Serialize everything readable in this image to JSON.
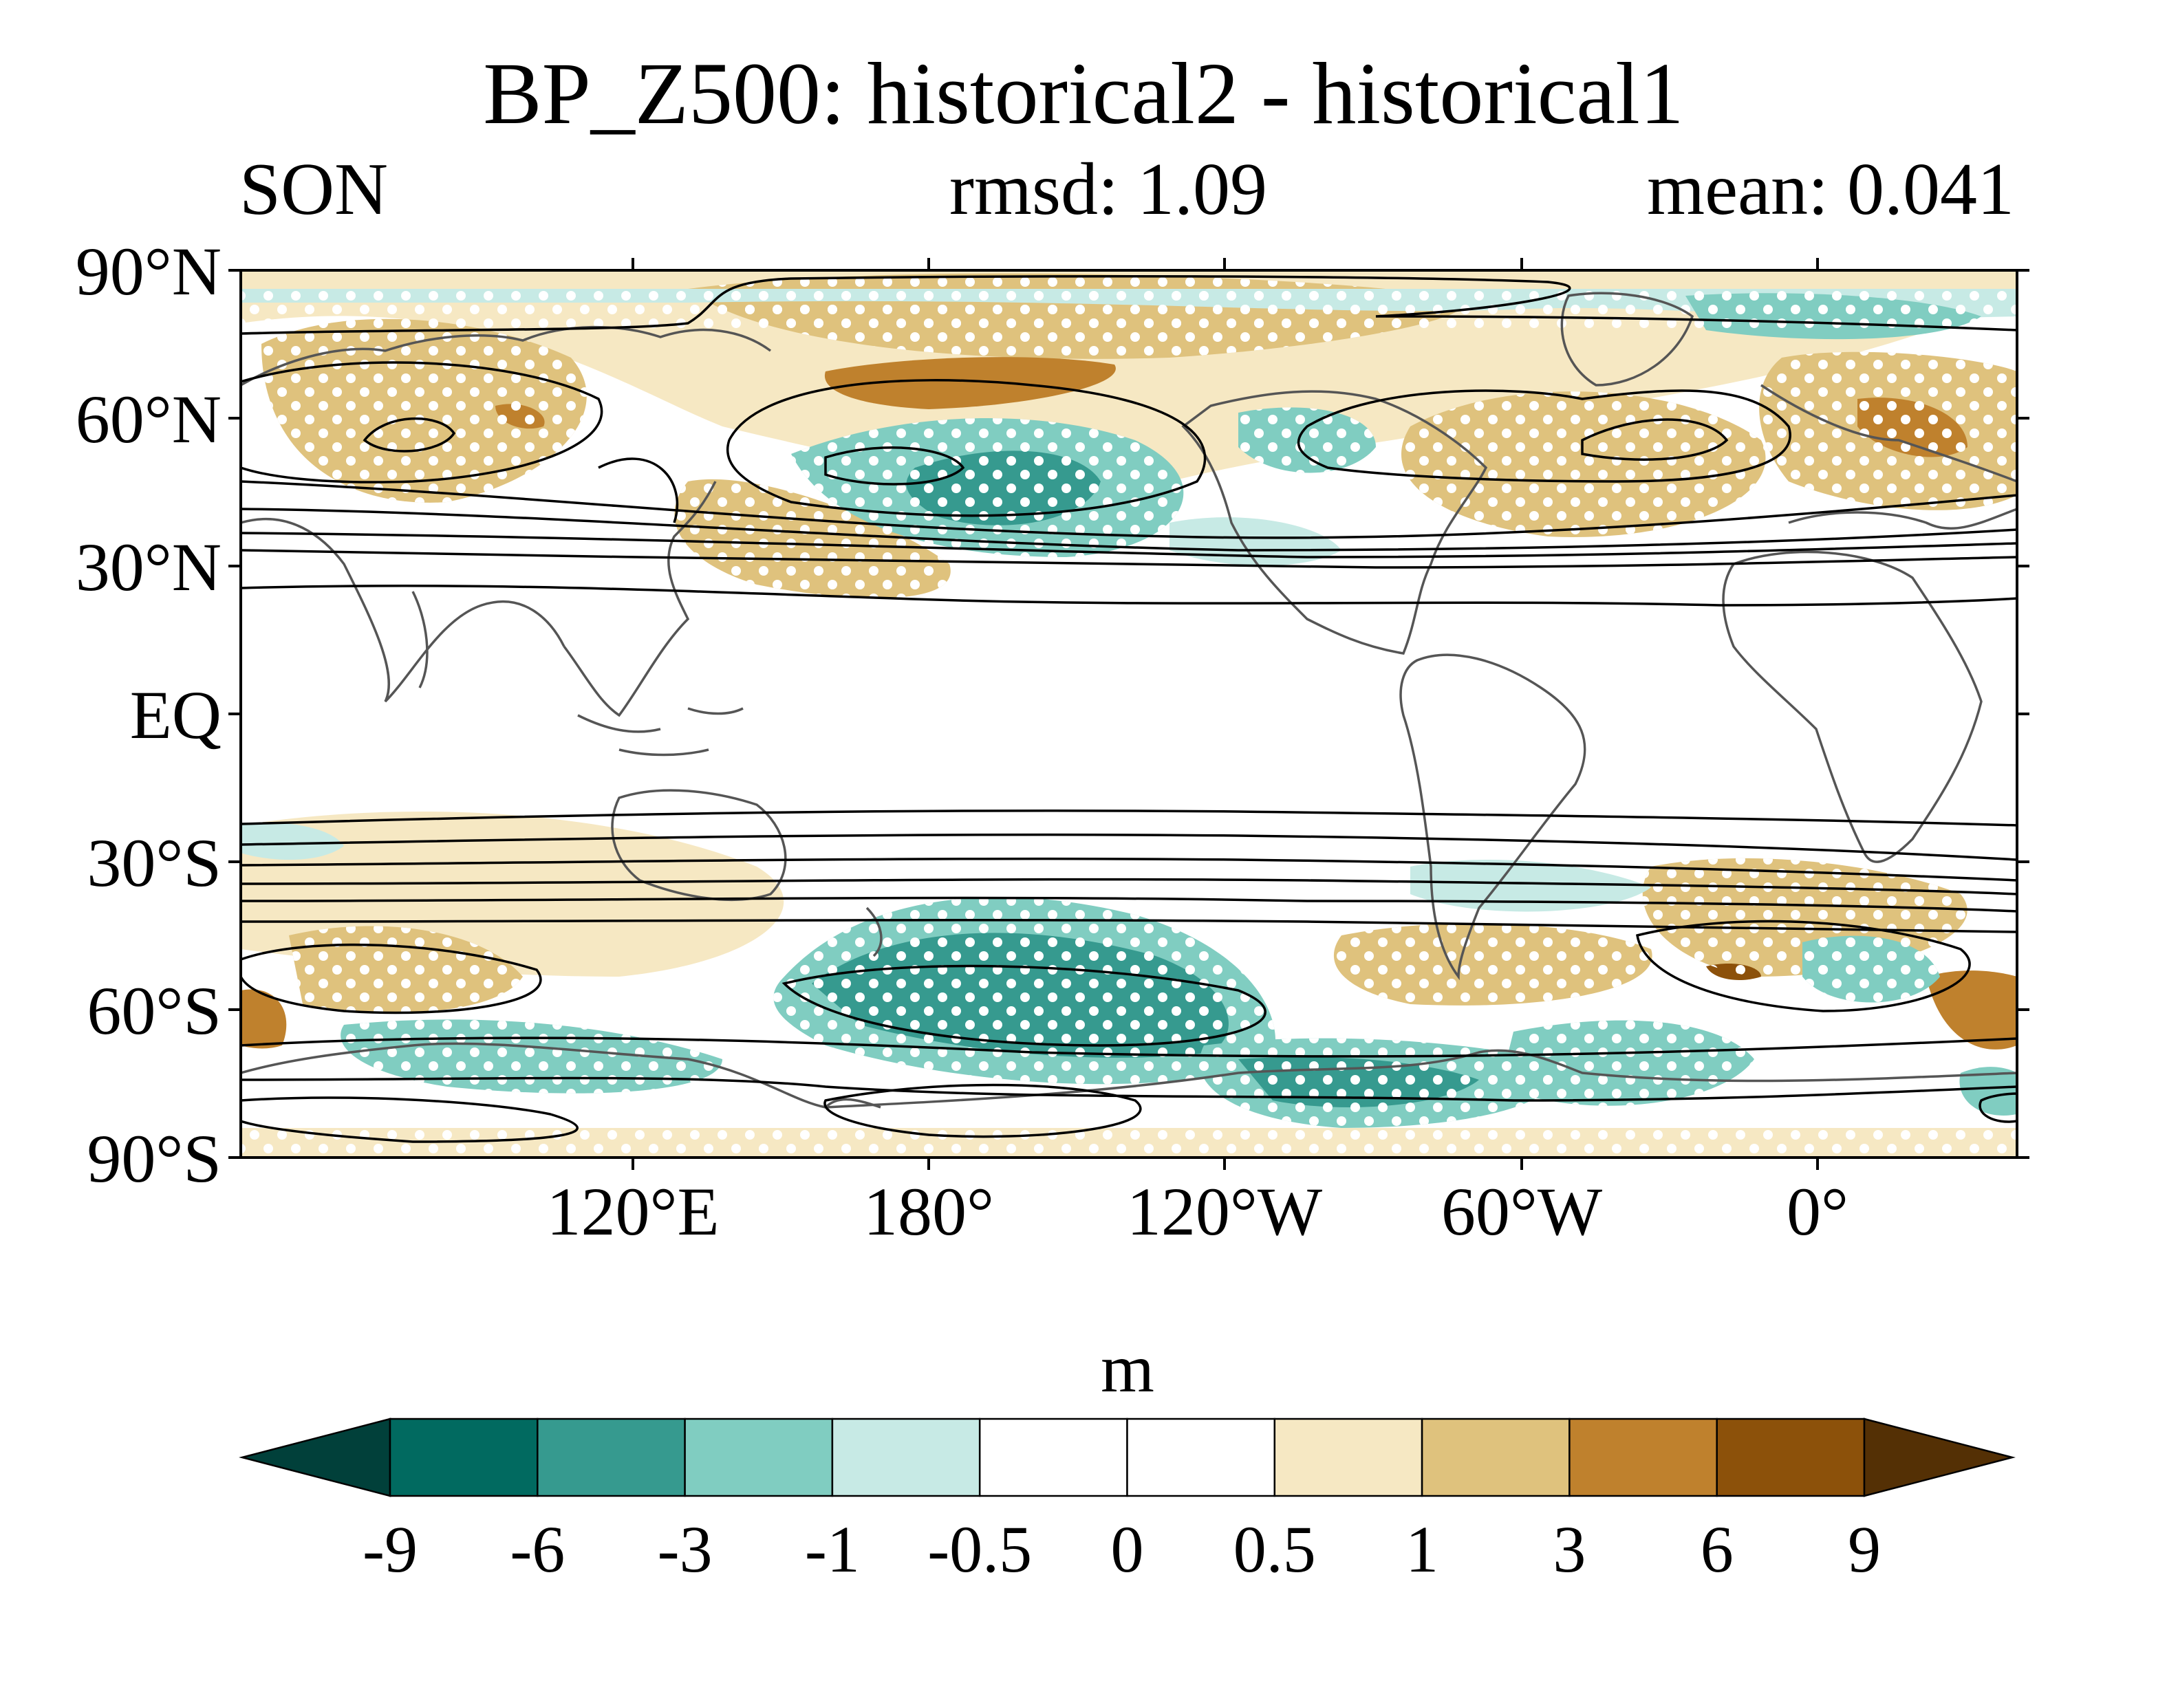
{
  "title": "BP_Z500: historical2 - historical1",
  "season": "SON",
  "rmsd_text": "rmsd: 1.09",
  "mean_text": "mean: 0.041",
  "units": "m",
  "lat_labels": [
    "90°N",
    "60°N",
    "30°N",
    "EQ",
    "30°S",
    "60°S",
    "90°S"
  ],
  "lon_labels": [
    "120°E",
    "180°",
    "120°W",
    "60°W",
    "0°"
  ],
  "colorbar": {
    "levels": [
      "-9",
      "-6",
      "-3",
      "-1",
      "-0.5",
      "0",
      "0.5",
      "1",
      "3",
      "6",
      "9"
    ],
    "colors": [
      "#01403a",
      "#016a60",
      "#369a8f",
      "#80cdc1",
      "#c7eae5",
      "#ffffff",
      "#ffffff",
      "#f6e8c3",
      "#dfc27d",
      "#bf812d",
      "#8c510a",
      "#543005"
    ]
  },
  "chart_data": {
    "type": "heatmap",
    "title": "BP_Z500: historical2 - historical1",
    "subtitle_left": "SON",
    "subtitle_center": "rmsd: 1.09",
    "subtitle_right": "mean: 0.041",
    "units": "m",
    "projection": "cylindrical equidistant, centered on 150°W",
    "lat_range": [
      -90,
      90
    ],
    "lon_range": [
      30,
      390
    ],
    "stippling": "significant regions marked with white dots",
    "contours": "black climatological Z500 band-pass contours",
    "field_anomalies": [
      {
        "lon": 195,
        "lat": 45,
        "value": -4
      },
      {
        "lon": 215,
        "lat": 50,
        "value": -3
      },
      {
        "lon": 185,
        "lat": -55,
        "value": -5
      },
      {
        "lon": 220,
        "lat": -60,
        "value": -5
      },
      {
        "lon": 265,
        "lat": -70,
        "value": -4
      },
      {
        "lon": 120,
        "lat": -70,
        "value": -2
      },
      {
        "lon": 200,
        "lat": 65,
        "value": 4
      },
      {
        "lon": 80,
        "lat": 60,
        "value": 3
      },
      {
        "lon": 25,
        "lat": 57,
        "value": 4
      },
      {
        "lon": 280,
        "lat": 55,
        "value": 2
      },
      {
        "lon": 90,
        "lat": -55,
        "value": 2
      },
      {
        "lon": 330,
        "lat": -55,
        "value": 3
      },
      {
        "lon": 35,
        "lat": -62,
        "value": 4
      }
    ]
  }
}
